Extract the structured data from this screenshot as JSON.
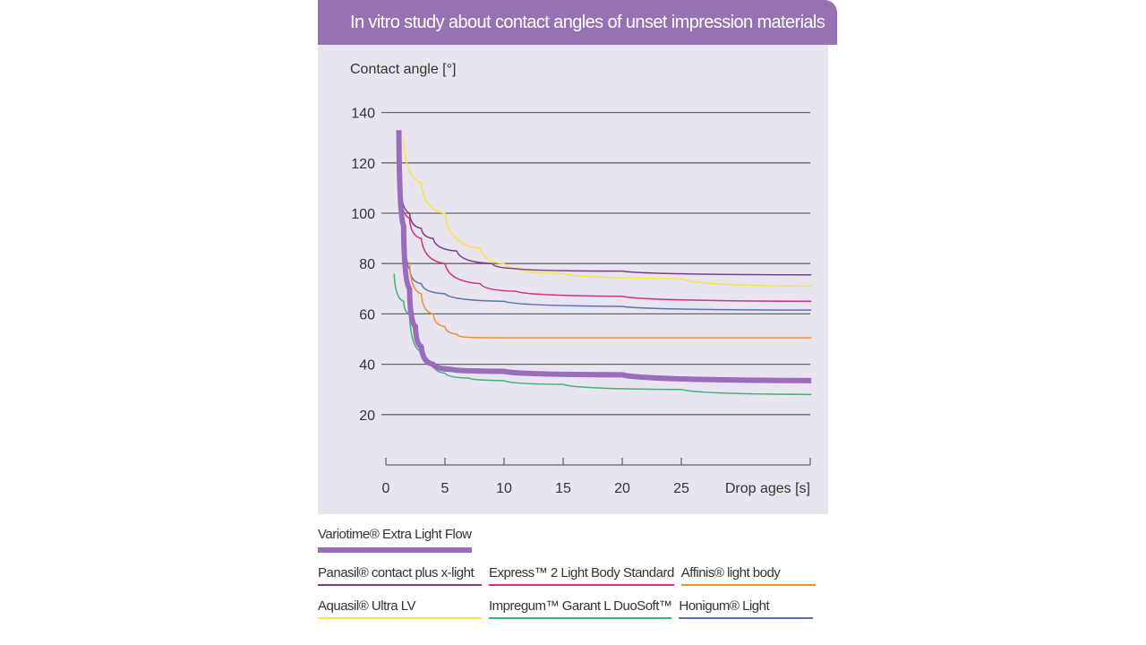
{
  "title": "In vitro study about contact angles of unset impression materials",
  "colors": {
    "header": "#9672b3",
    "panel": "#e9e5f0"
  },
  "chart_data": {
    "type": "line",
    "title": "In vitro study about contact angles of unset impression materials",
    "ylabel": "Contact angle [°]",
    "xlabel": "Drop ages [s]",
    "xlim": [
      0,
      36
    ],
    "ylim": [
      0,
      140
    ],
    "xticks": [
      0,
      5,
      10,
      15,
      20,
      25
    ],
    "yticks": [
      20,
      40,
      60,
      80,
      100,
      120,
      140
    ],
    "grid": "horizontal",
    "legend": "bottom",
    "series": [
      {
        "name": "Variotime® Extra Light Flow",
        "color": "#9a6cbd",
        "width": 6,
        "points": [
          [
            1.1,
            133
          ],
          [
            1.5,
            95
          ],
          [
            2,
            70
          ],
          [
            2.5,
            55
          ],
          [
            3,
            47
          ],
          [
            4,
            40
          ],
          [
            5.5,
            38
          ],
          [
            10,
            37.2
          ],
          [
            20,
            35.8
          ],
          [
            36,
            33.5
          ]
        ]
      },
      {
        "name": "Panasil® contact plus x-light",
        "color": "#7b3c8e",
        "width": 1.5,
        "points": [
          [
            1.2,
            113
          ],
          [
            2,
            100
          ],
          [
            3,
            94
          ],
          [
            4,
            90
          ],
          [
            6,
            85
          ],
          [
            9,
            80
          ],
          [
            11,
            78
          ],
          [
            20,
            77
          ],
          [
            36,
            75.5
          ]
        ]
      },
      {
        "name": "Express™ 2 Light Body Standard",
        "color": "#d8307a",
        "width": 1.5,
        "points": [
          [
            1.2,
            110
          ],
          [
            2,
            98
          ],
          [
            3,
            90
          ],
          [
            5,
            80
          ],
          [
            8,
            72
          ],
          [
            11,
            69
          ],
          [
            20,
            67
          ],
          [
            36,
            65
          ]
        ]
      },
      {
        "name": "Affinis® light body",
        "color": "#ee9030",
        "width": 1.5,
        "points": [
          [
            1.4,
            95
          ],
          [
            2,
            80
          ],
          [
            3,
            68
          ],
          [
            4,
            60
          ],
          [
            5,
            55
          ],
          [
            6,
            52
          ],
          [
            7,
            50.7
          ],
          [
            10,
            50.5
          ],
          [
            36,
            50.5
          ]
        ]
      },
      {
        "name": "Aquasil® Ultra LV",
        "color": "#f7e640",
        "width": 1.5,
        "points": [
          [
            1.5,
            130
          ],
          [
            3,
            112
          ],
          [
            5,
            100
          ],
          [
            8,
            86
          ],
          [
            10,
            80
          ],
          [
            15,
            76
          ],
          [
            25,
            74
          ],
          [
            36,
            71
          ]
        ]
      },
      {
        "name": "Impregum™ Garant L DuoSoft™",
        "color": "#3cb373",
        "width": 1.5,
        "points": [
          [
            0.7,
            76
          ],
          [
            1.5,
            65
          ],
          [
            2,
            60
          ],
          [
            3,
            45
          ],
          [
            4,
            40
          ],
          [
            5,
            36.5
          ],
          [
            7,
            34.5
          ],
          [
            10,
            33.5
          ],
          [
            15,
            32
          ],
          [
            25,
            30
          ],
          [
            36,
            28
          ]
        ]
      },
      {
        "name": "Honigum® Light",
        "color": "#5a73b0",
        "width": 1.5,
        "points": [
          [
            1.3,
            118
          ],
          [
            1.6,
            90
          ],
          [
            2,
            78
          ],
          [
            3,
            72
          ],
          [
            5,
            68
          ],
          [
            10,
            65
          ],
          [
            20,
            63
          ],
          [
            36,
            61.5
          ]
        ]
      }
    ]
  }
}
